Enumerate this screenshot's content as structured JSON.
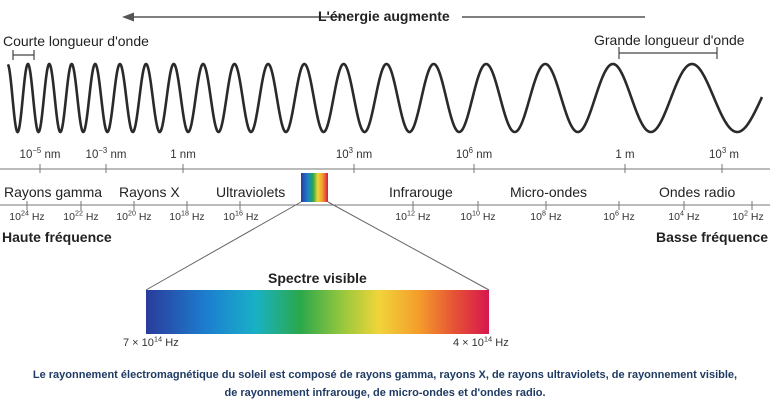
{
  "energy_label": "L'énergie augmente",
  "short_wavelength_label": "Courte longueur d'onde",
  "long_wavelength_label": "Grande longueur d'onde",
  "wavelength_ticks": [
    {
      "base": "10",
      "exp": "−5",
      "unit": "nm"
    },
    {
      "base": "10",
      "exp": "−3",
      "unit": "nm"
    },
    {
      "base": "",
      "exp": "",
      "unit": "1 nm"
    },
    {
      "base": "10",
      "exp": "3",
      "unit": "nm"
    },
    {
      "base": "10",
      "exp": "6",
      "unit": "nm"
    },
    {
      "base": "",
      "exp": "",
      "unit": "1 m"
    },
    {
      "base": "10",
      "exp": "3",
      "unit": "m"
    }
  ],
  "bands": [
    "Rayons gamma",
    "Rayons X",
    "Ultraviolets",
    "Infrarouge",
    "Micro-ondes",
    "Ondes radio"
  ],
  "frequency_ticks": [
    {
      "base": "10",
      "exp": "24",
      "unit": "Hz"
    },
    {
      "base": "10",
      "exp": "22",
      "unit": "Hz"
    },
    {
      "base": "10",
      "exp": "20",
      "unit": "Hz"
    },
    {
      "base": "10",
      "exp": "18",
      "unit": "Hz"
    },
    {
      "base": "10",
      "exp": "16",
      "unit": "Hz"
    },
    {
      "base": "10",
      "exp": "12",
      "unit": "Hz"
    },
    {
      "base": "10",
      "exp": "10",
      "unit": "Hz"
    },
    {
      "base": "10",
      "exp": "8",
      "unit": "Hz"
    },
    {
      "base": "10",
      "exp": "6",
      "unit": "Hz"
    },
    {
      "base": "10",
      "exp": "4",
      "unit": "Hz"
    },
    {
      "base": "10",
      "exp": "2",
      "unit": "Hz"
    }
  ],
  "high_freq_label": "Haute fréquence",
  "low_freq_label": "Basse fréquence",
  "visible_spectrum_label": "Spectre visible",
  "visible_left": {
    "prefix": "7 × 10",
    "exp": "14",
    "unit": "Hz"
  },
  "visible_right": {
    "prefix": "4 × 10",
    "exp": "14",
    "unit": "Hz"
  },
  "caption_line1": "Le rayonnement électromagnétique du soleil est composé de rayons gamma, rayons X, de rayons ultraviolets, de rayonnement visible,",
  "caption_line2": "de rayonnement infrarouge, de micro-ondes et d'ondes radio.",
  "colors": {
    "caption": "#1f3b63",
    "line": "#555555"
  }
}
